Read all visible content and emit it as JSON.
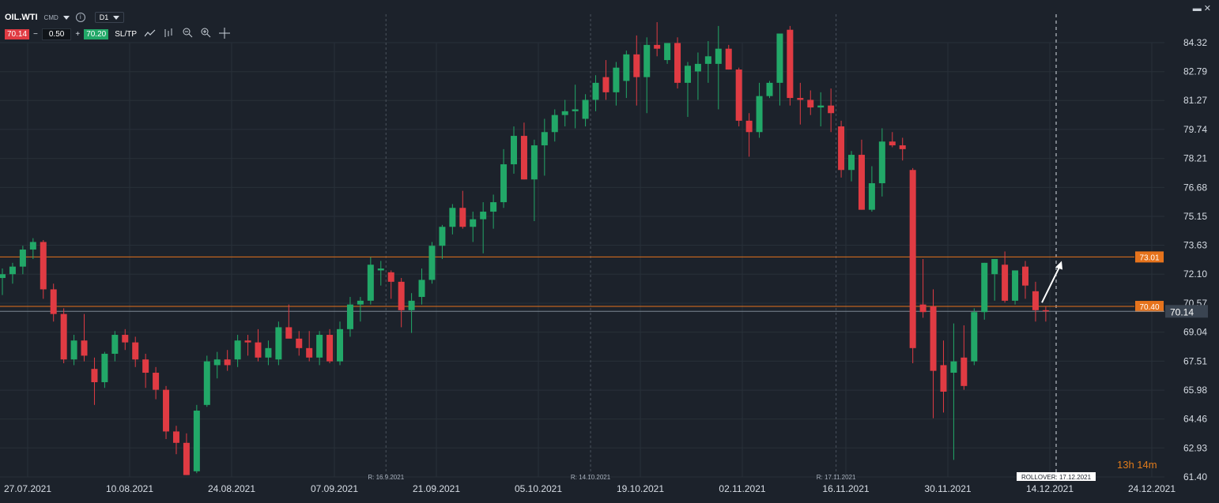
{
  "header": {
    "symbol": "OIL.WTI",
    "category": "CMD",
    "timeframe": "D1",
    "sell_price": "70.14",
    "volume": "0.50",
    "buy_price": "70.20",
    "sltp_label": "SL/TP",
    "minus_label": "−",
    "plus_label": "+"
  },
  "timer": "13h 14m",
  "colors": {
    "background": "#1c222b",
    "bull": "#22a868",
    "bear": "#e03b43",
    "level": "#e6731c",
    "grid": "#283039",
    "axis_text": "#d7dde5"
  },
  "chart_data": {
    "type": "candlestick",
    "timeframe": "D1",
    "y_ticks": [
      84.32,
      82.79,
      81.27,
      79.74,
      78.21,
      76.68,
      75.15,
      73.63,
      72.1,
      70.57,
      69.04,
      67.51,
      65.98,
      64.46,
      62.93,
      61.4
    ],
    "ylim": [
      61.4,
      84.32
    ],
    "x_ticks": [
      "27.07.2021",
      "10.08.2021",
      "24.08.2021",
      "07.09.2021",
      "21.09.2021",
      "05.10.2021",
      "19.10.2021",
      "02.11.2021",
      "16.11.2021",
      "30.11.2021",
      "14.12.2021",
      "24.12.2021"
    ],
    "candles": [
      {
        "o": 71.9,
        "h": 72.4,
        "l": 71.0,
        "c": 72.1
      },
      {
        "o": 72.1,
        "h": 72.7,
        "l": 71.6,
        "c": 72.5
      },
      {
        "o": 72.5,
        "h": 73.6,
        "l": 72.1,
        "c": 73.4
      },
      {
        "o": 73.4,
        "h": 74.0,
        "l": 72.9,
        "c": 73.8
      },
      {
        "o": 73.8,
        "h": 73.9,
        "l": 70.8,
        "c": 71.3
      },
      {
        "o": 71.3,
        "h": 71.6,
        "l": 69.6,
        "c": 70.0
      },
      {
        "o": 70.0,
        "h": 70.3,
        "l": 67.4,
        "c": 67.6
      },
      {
        "o": 67.6,
        "h": 68.9,
        "l": 67.3,
        "c": 68.6
      },
      {
        "o": 68.6,
        "h": 70.0,
        "l": 67.5,
        "c": 67.8
      },
      {
        "o": 67.1,
        "h": 67.7,
        "l": 65.2,
        "c": 66.4
      },
      {
        "o": 66.4,
        "h": 68.0,
        "l": 66.1,
        "c": 67.9
      },
      {
        "o": 67.9,
        "h": 69.1,
        "l": 67.5,
        "c": 68.9
      },
      {
        "o": 68.9,
        "h": 69.2,
        "l": 68.1,
        "c": 68.5
      },
      {
        "o": 68.5,
        "h": 68.8,
        "l": 67.2,
        "c": 67.6
      },
      {
        "o": 67.6,
        "h": 67.9,
        "l": 66.1,
        "c": 66.9
      },
      {
        "o": 66.9,
        "h": 67.2,
        "l": 65.5,
        "c": 66.0
      },
      {
        "o": 66.0,
        "h": 66.2,
        "l": 63.4,
        "c": 63.8
      },
      {
        "o": 63.8,
        "h": 64.1,
        "l": 62.6,
        "c": 63.2
      },
      {
        "o": 63.2,
        "h": 63.7,
        "l": 61.5,
        "c": 61.5
      },
      {
        "o": 61.7,
        "h": 65.2,
        "l": 61.6,
        "c": 64.9
      },
      {
        "o": 65.2,
        "h": 67.8,
        "l": 65.1,
        "c": 67.5
      },
      {
        "o": 67.3,
        "h": 68.0,
        "l": 66.6,
        "c": 67.6
      },
      {
        "o": 67.6,
        "h": 68.1,
        "l": 67.0,
        "c": 67.3
      },
      {
        "o": 67.6,
        "h": 68.9,
        "l": 67.2,
        "c": 68.6
      },
      {
        "o": 68.6,
        "h": 68.9,
        "l": 67.8,
        "c": 68.5
      },
      {
        "o": 68.5,
        "h": 69.2,
        "l": 67.5,
        "c": 67.7
      },
      {
        "o": 67.7,
        "h": 68.6,
        "l": 67.3,
        "c": 68.2
      },
      {
        "o": 67.6,
        "h": 69.6,
        "l": 67.3,
        "c": 69.3
      },
      {
        "o": 69.3,
        "h": 70.5,
        "l": 68.8,
        "c": 68.7
      },
      {
        "o": 68.7,
        "h": 69.1,
        "l": 67.8,
        "c": 68.2
      },
      {
        "o": 68.2,
        "h": 69.1,
        "l": 67.5,
        "c": 67.7
      },
      {
        "o": 67.7,
        "h": 69.1,
        "l": 67.3,
        "c": 68.9
      },
      {
        "o": 68.9,
        "h": 69.2,
        "l": 67.4,
        "c": 67.5
      },
      {
        "o": 67.5,
        "h": 69.6,
        "l": 67.3,
        "c": 69.2
      },
      {
        "o": 69.2,
        "h": 70.9,
        "l": 68.8,
        "c": 70.5
      },
      {
        "o": 70.5,
        "h": 70.9,
        "l": 69.6,
        "c": 70.7
      },
      {
        "o": 70.7,
        "h": 73.0,
        "l": 70.5,
        "c": 72.6
      },
      {
        "o": 72.3,
        "h": 72.8,
        "l": 71.5,
        "c": 72.4
      },
      {
        "o": 72.2,
        "h": 72.3,
        "l": 70.8,
        "c": 71.7
      },
      {
        "o": 71.7,
        "h": 71.9,
        "l": 69.3,
        "c": 70.2
      },
      {
        "o": 70.2,
        "h": 71.1,
        "l": 69.0,
        "c": 70.7
      },
      {
        "o": 70.9,
        "h": 72.4,
        "l": 70.5,
        "c": 71.8
      },
      {
        "o": 71.8,
        "h": 73.8,
        "l": 71.6,
        "c": 73.6
      },
      {
        "o": 73.6,
        "h": 74.7,
        "l": 72.9,
        "c": 74.6
      },
      {
        "o": 74.6,
        "h": 75.8,
        "l": 74.2,
        "c": 75.6
      },
      {
        "o": 75.6,
        "h": 76.5,
        "l": 74.5,
        "c": 74.6
      },
      {
        "o": 74.6,
        "h": 75.4,
        "l": 73.8,
        "c": 75.0
      },
      {
        "o": 75.0,
        "h": 75.9,
        "l": 73.2,
        "c": 75.4
      },
      {
        "o": 75.4,
        "h": 76.3,
        "l": 74.5,
        "c": 75.9
      },
      {
        "o": 75.9,
        "h": 78.7,
        "l": 75.6,
        "c": 77.9
      },
      {
        "o": 77.9,
        "h": 79.9,
        "l": 77.4,
        "c": 79.4
      },
      {
        "o": 79.4,
        "h": 80.1,
        "l": 77.1,
        "c": 77.1
      },
      {
        "o": 77.1,
        "h": 79.2,
        "l": 74.9,
        "c": 78.9
      },
      {
        "o": 78.9,
        "h": 80.3,
        "l": 77.3,
        "c": 79.6
      },
      {
        "o": 79.6,
        "h": 80.8,
        "l": 79.1,
        "c": 80.5
      },
      {
        "o": 80.5,
        "h": 81.3,
        "l": 79.9,
        "c": 80.7
      },
      {
        "o": 80.7,
        "h": 82.1,
        "l": 79.8,
        "c": 80.8
      },
      {
        "o": 80.3,
        "h": 81.6,
        "l": 79.9,
        "c": 81.3
      },
      {
        "o": 81.3,
        "h": 82.6,
        "l": 80.7,
        "c": 82.2
      },
      {
        "o": 82.5,
        "h": 83.4,
        "l": 81.3,
        "c": 81.7
      },
      {
        "o": 81.7,
        "h": 83.3,
        "l": 81.0,
        "c": 83.0
      },
      {
        "o": 82.3,
        "h": 83.9,
        "l": 81.4,
        "c": 83.7
      },
      {
        "o": 83.7,
        "h": 84.7,
        "l": 81.0,
        "c": 82.5
      },
      {
        "o": 82.5,
        "h": 84.6,
        "l": 80.6,
        "c": 84.2
      },
      {
        "o": 84.2,
        "h": 85.4,
        "l": 83.6,
        "c": 84.0
      },
      {
        "o": 83.4,
        "h": 84.1,
        "l": 83.2,
        "c": 84.3
      },
      {
        "o": 84.3,
        "h": 84.6,
        "l": 81.9,
        "c": 82.2
      },
      {
        "o": 82.2,
        "h": 83.3,
        "l": 80.4,
        "c": 83.1
      },
      {
        "o": 82.8,
        "h": 83.8,
        "l": 81.3,
        "c": 83.2
      },
      {
        "o": 83.2,
        "h": 84.4,
        "l": 82.2,
        "c": 83.6
      },
      {
        "o": 83.2,
        "h": 85.2,
        "l": 80.8,
        "c": 84.0
      },
      {
        "o": 84.0,
        "h": 84.2,
        "l": 82.9,
        "c": 82.9
      },
      {
        "o": 82.9,
        "h": 83.0,
        "l": 79.9,
        "c": 80.2
      },
      {
        "o": 80.2,
        "h": 80.6,
        "l": 78.3,
        "c": 79.6
      },
      {
        "o": 79.6,
        "h": 82.2,
        "l": 79.3,
        "c": 81.5
      },
      {
        "o": 81.5,
        "h": 82.3,
        "l": 81.4,
        "c": 82.2
      },
      {
        "o": 82.2,
        "h": 84.7,
        "l": 81.0,
        "c": 84.8
      },
      {
        "o": 85.0,
        "h": 85.2,
        "l": 81.0,
        "c": 81.4
      },
      {
        "o": 81.4,
        "h": 82.2,
        "l": 80.0,
        "c": 81.3
      },
      {
        "o": 81.3,
        "h": 81.8,
        "l": 80.5,
        "c": 80.9
      },
      {
        "o": 80.9,
        "h": 81.7,
        "l": 79.9,
        "c": 81.0
      },
      {
        "o": 81.0,
        "h": 81.9,
        "l": 79.6,
        "c": 80.6
      },
      {
        "o": 79.9,
        "h": 80.2,
        "l": 77.2,
        "c": 77.6
      },
      {
        "o": 77.6,
        "h": 78.6,
        "l": 77.0,
        "c": 78.4
      },
      {
        "o": 78.4,
        "h": 79.2,
        "l": 75.5,
        "c": 75.5
      },
      {
        "o": 75.5,
        "h": 77.8,
        "l": 75.4,
        "c": 76.9
      },
      {
        "o": 76.9,
        "h": 79.8,
        "l": 76.2,
        "c": 79.1
      },
      {
        "o": 79.1,
        "h": 79.6,
        "l": 78.8,
        "c": 78.9
      },
      {
        "o": 78.9,
        "h": 79.3,
        "l": 78.1,
        "c": 78.7
      },
      {
        "o": 77.6,
        "h": 77.7,
        "l": 67.4,
        "c": 68.2
      },
      {
        "o": 70.5,
        "h": 72.9,
        "l": 69.8,
        "c": 70.1
      },
      {
        "o": 70.4,
        "h": 71.3,
        "l": 64.5,
        "c": 67.0
      },
      {
        "o": 67.3,
        "h": 68.6,
        "l": 64.8,
        "c": 65.9
      },
      {
        "o": 66.9,
        "h": 69.5,
        "l": 62.3,
        "c": 67.5
      },
      {
        "o": 67.7,
        "h": 69.4,
        "l": 66.0,
        "c": 66.2
      },
      {
        "o": 67.5,
        "h": 70.3,
        "l": 67.3,
        "c": 70.1
      },
      {
        "o": 70.1,
        "h": 72.7,
        "l": 69.7,
        "c": 72.7
      },
      {
        "o": 72.1,
        "h": 72.9,
        "l": 70.7,
        "c": 72.9
      },
      {
        "o": 72.6,
        "h": 73.3,
        "l": 70.6,
        "c": 70.7
      },
      {
        "o": 70.7,
        "h": 72.2,
        "l": 70.5,
        "c": 72.3
      },
      {
        "o": 72.5,
        "h": 72.8,
        "l": 70.8,
        "c": 71.5
      },
      {
        "o": 71.2,
        "h": 71.7,
        "l": 69.6,
        "c": 70.2
      },
      {
        "o": 70.2,
        "h": 70.4,
        "l": 69.6,
        "c": 70.14
      }
    ],
    "levels": [
      {
        "value": 73.01,
        "label": "73.01"
      },
      {
        "value": 70.4,
        "label": "70.40"
      }
    ],
    "current_price": {
      "value": 70.14,
      "label": "70.14"
    },
    "vertical_markers": [
      {
        "after_index": 37,
        "label": "R: 16.9.2021"
      },
      {
        "after_index": 57,
        "label": "R: 14.10.2021"
      },
      {
        "after_index": 81,
        "label": "R: 17.11.2021"
      }
    ],
    "rollover": {
      "label": "ROLLOVER: 17.12.2021"
    },
    "arrow": {
      "from_value": 70.6,
      "to_value": 72.8
    }
  }
}
